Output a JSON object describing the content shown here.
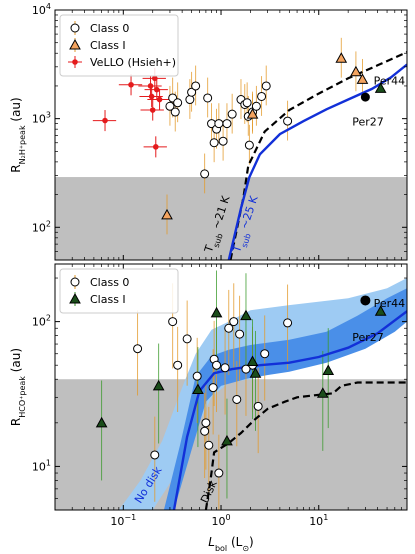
{
  "chart_data": [
    {
      "type": "scatter",
      "panel": "top",
      "ylabel": "R_{N2H+ peak} (au)",
      "ylabel_parts": {
        "main": "R",
        "sub": "N₂H⁺peak",
        "unit": " (au)"
      },
      "xlabel": "",
      "xscale": "log",
      "yscale": "log",
      "xlim": [
        0.02,
        80
      ],
      "ylim": [
        50,
        10000
      ],
      "y_ticks": [
        {
          "v": 100,
          "label": "10²"
        },
        {
          "v": 1000,
          "label": "10³"
        },
        {
          "v": 10000,
          "label": "10⁴"
        }
      ],
      "shade_below": 290,
      "legend": {
        "placement": "top-left",
        "entries": [
          "Class 0",
          "Class I",
          "VeLLO (Hsieh+)"
        ]
      },
      "series": [
        {
          "name": "Class 0",
          "marker": "open-circle",
          "points": [
            [
              0.68,
              310
            ],
            [
              0.48,
              1500
            ],
            [
              0.5,
              1750
            ],
            [
              0.55,
              2000
            ],
            [
              0.73,
              1550
            ],
            [
              0.8,
              900
            ],
            [
              0.85,
              600
            ],
            [
              0.9,
              800
            ],
            [
              0.95,
              900
            ],
            [
              1.05,
              620
            ],
            [
              1.15,
              900
            ],
            [
              1.3,
              1100
            ],
            [
              1.6,
              1500
            ],
            [
              1.75,
              1350
            ],
            [
              1.85,
              1400
            ],
            [
              1.9,
              1050
            ],
            [
              1.95,
              570
            ],
            [
              2.1,
              1150
            ],
            [
              2.3,
              1300
            ],
            [
              2.6,
              1600
            ],
            [
              2.9,
              2000
            ],
            [
              4.8,
              950
            ],
            [
              0.3,
              1300
            ],
            [
              0.32,
              1550
            ],
            [
              0.34,
              1150
            ],
            [
              0.36,
              1400
            ]
          ],
          "y_err_frac": 0.45
        },
        {
          "name": "Class I",
          "marker": "open-triangle",
          "points": [
            [
              0.28,
              130
            ],
            [
              2.1,
              1100
            ],
            [
              17,
              3600
            ],
            [
              24,
              2700
            ],
            [
              28,
              2300
            ]
          ],
          "y_err_frac": 0.45
        },
        {
          "name": "VeLLO (Hsieh+)",
          "marker": "red-dot",
          "points": [
            [
              0.065,
              960
            ],
            [
              0.12,
              2050
            ],
            [
              0.19,
              2000
            ],
            [
              0.195,
              1600
            ],
            [
              0.2,
              1200
            ],
            [
              0.21,
              2350
            ],
            [
              0.22,
              1850
            ],
            [
              0.235,
              1500
            ],
            [
              0.215,
              550
            ]
          ]
        },
        {
          "name": "",
          "marker": "filled-circle",
          "points": [
            [
              30,
              1580
            ]
          ]
        },
        {
          "name": "",
          "marker": "filled-triangle",
          "points": [
            [
              43,
              1900
            ]
          ]
        }
      ],
      "curves": [
        {
          "style": "dashed-black",
          "points": [
            [
              1.25,
              50
            ],
            [
              1.7,
              190
            ],
            [
              1.9,
              370
            ],
            [
              2.8,
              760
            ],
            [
              5,
              1200
            ],
            [
              10,
              1700
            ],
            [
              20,
              2350
            ],
            [
              40,
              3100
            ],
            [
              80,
              4100
            ]
          ]
        },
        {
          "style": "solid-blue",
          "points": [
            [
              1.2,
              50
            ],
            [
              1.6,
              150
            ],
            [
              1.95,
              290
            ],
            [
              2.5,
              470
            ],
            [
              4,
              720
            ],
            [
              7,
              950
            ],
            [
              12,
              1220
            ],
            [
              20,
              1500
            ],
            [
              35,
              1880
            ],
            [
              55,
              2400
            ],
            [
              80,
              3150
            ]
          ]
        }
      ],
      "annotations": [
        {
          "text": "Per44",
          "x": 40,
          "y": 1900
        },
        {
          "text": "Per27",
          "x": 22,
          "y": 1160
        },
        {
          "text": "T_sub ~ 21 K",
          "main": "T",
          "sub": "sub",
          "tail": " ~21 K",
          "x": 0.8,
          "y": 58
        },
        {
          "text": "T_sub ~ 25 K",
          "main": "T",
          "sub": "sub",
          "tail": " ~25 K",
          "x": 1.55,
          "y": 58
        }
      ]
    },
    {
      "type": "scatter",
      "panel": "bottom",
      "ylabel": "R_{HCO+ peak} (au)",
      "ylabel_parts": {
        "main": "R",
        "sub": "HCO⁺peak",
        "unit": " (au)"
      },
      "xlabel": "L_bol (L_⊙)",
      "xlabel_parts": {
        "main": "L",
        "sub": "bol",
        "unit": " (L",
        "unit_sub": "⊙",
        "close": ")"
      },
      "xscale": "log",
      "yscale": "log",
      "xlim": [
        0.02,
        80
      ],
      "ylim": [
        5,
        250
      ],
      "x_ticks": [
        {
          "v": 0.1,
          "label": "10⁻¹"
        },
        {
          "v": 1,
          "label": "10⁰"
        },
        {
          "v": 10,
          "label": "10¹"
        }
      ],
      "y_ticks": [
        {
          "v": 10,
          "label": "10¹"
        },
        {
          "v": 100,
          "label": "10²"
        }
      ],
      "shade_below": 40,
      "legend": {
        "placement": "top-left",
        "entries": [
          "Class 0",
          "Class I"
        ]
      },
      "series": [
        {
          "name": "Class 0",
          "marker": "open-circle",
          "points": [
            [
              0.14,
              65
            ],
            [
              0.21,
              12
            ],
            [
              0.32,
              100
            ],
            [
              0.36,
              50
            ],
            [
              0.45,
              76
            ],
            [
              0.57,
              42
            ],
            [
              0.68,
              17.5
            ],
            [
              0.7,
              20
            ],
            [
              0.75,
              14
            ],
            [
              0.83,
              35
            ],
            [
              0.85,
              55
            ],
            [
              0.9,
              50
            ],
            [
              0.95,
              9
            ],
            [
              1.1,
              48
            ],
            [
              1.2,
              90
            ],
            [
              1.35,
              100
            ],
            [
              1.45,
              29
            ],
            [
              1.55,
              82
            ],
            [
              2.1,
              50
            ],
            [
              2.4,
              26
            ],
            [
              2.8,
              60
            ],
            [
              4.8,
              98
            ],
            [
              1.8,
              47
            ]
          ],
          "y_err_frac": 0.7
        },
        {
          "name": "Class I",
          "marker": "filled-triangle",
          "points": [
            [
              0.06,
              20
            ],
            [
              0.23,
              36
            ],
            [
              0.58,
              34
            ],
            [
              0.9,
              115
            ],
            [
              1.15,
              15
            ],
            [
              1.8,
              110
            ],
            [
              2.1,
              53
            ],
            [
              2.25,
              44
            ],
            [
              11,
              32
            ],
            [
              12.5,
              46
            ]
          ],
          "y_err_frac": 0.8
        },
        {
          "name": "",
          "marker": "filled-circle-large",
          "points": [
            [
              30,
              140
            ]
          ]
        },
        {
          "name": "",
          "marker": "filled-triangle",
          "points": [
            [
              43,
              118
            ]
          ]
        }
      ],
      "band_outer": {
        "lower": [
          [
            0.2,
            5
          ],
          [
            0.35,
            9
          ],
          [
            0.55,
            18
          ],
          [
            0.8,
            30
          ],
          [
            1.2,
            38
          ],
          [
            2,
            40
          ],
          [
            4,
            45
          ],
          [
            8,
            55
          ],
          [
            20,
            70
          ],
          [
            40,
            95
          ],
          [
            80,
            115
          ]
        ],
        "upper": [
          [
            0.09,
            5
          ],
          [
            0.15,
            8
          ],
          [
            0.25,
            15
          ],
          [
            0.4,
            35
          ],
          [
            0.55,
            60
          ],
          [
            0.8,
            88
          ],
          [
            1.2,
            100
          ],
          [
            2,
            120
          ],
          [
            5,
            130
          ],
          [
            20,
            145
          ],
          [
            50,
            170
          ],
          [
            80,
            200
          ]
        ]
      },
      "band_inner": {
        "lower": [
          [
            0.33,
            5
          ],
          [
            0.5,
            13
          ],
          [
            0.7,
            28
          ],
          [
            1,
            36
          ],
          [
            2,
            41
          ],
          [
            5,
            45
          ],
          [
            12,
            52
          ],
          [
            30,
            65
          ],
          [
            60,
            85
          ],
          [
            80,
            100
          ]
        ],
        "upper": [
          [
            0.26,
            5
          ],
          [
            0.38,
            14
          ],
          [
            0.55,
            42
          ],
          [
            0.8,
            58
          ],
          [
            1.2,
            64
          ],
          [
            2,
            69
          ],
          [
            5,
            75
          ],
          [
            12,
            85
          ],
          [
            25,
            110
          ],
          [
            50,
            145
          ],
          [
            80,
            170
          ]
        ]
      },
      "curves": [
        {
          "style": "solid-blue",
          "points": [
            [
              0.33,
              5
            ],
            [
              0.45,
              16
            ],
            [
              0.6,
              33
            ],
            [
              0.85,
              44
            ],
            [
              1.3,
              47
            ],
            [
              2.5,
              50
            ],
            [
              5,
              52
            ],
            [
              10,
              57
            ],
            [
              20,
              66
            ],
            [
              40,
              83
            ],
            [
              80,
              118
            ]
          ]
        },
        {
          "style": "dashed-black",
          "points": [
            [
              0.7,
              5
            ],
            [
              0.78,
              8
            ],
            [
              0.85,
              12.5
            ],
            [
              1.2,
              14.5
            ],
            [
              1.6,
              17
            ],
            [
              2.2,
              21
            ],
            [
              3,
              25
            ],
            [
              4.5,
              28
            ],
            [
              6,
              30
            ],
            [
              9,
              31
            ],
            [
              14,
              32
            ],
            [
              17,
              36
            ],
            [
              25,
              38
            ],
            [
              80,
              38
            ]
          ]
        }
      ],
      "annotations": [
        {
          "text": "Per44",
          "x": 40,
          "y": 118
        },
        {
          "text": "Per27",
          "x": 22,
          "y": 92
        },
        {
          "text": "No disk",
          "x": 0.15,
          "y": 5.5
        },
        {
          "text": "Disk",
          "x": 0.72,
          "y": 5.5
        }
      ]
    }
  ]
}
